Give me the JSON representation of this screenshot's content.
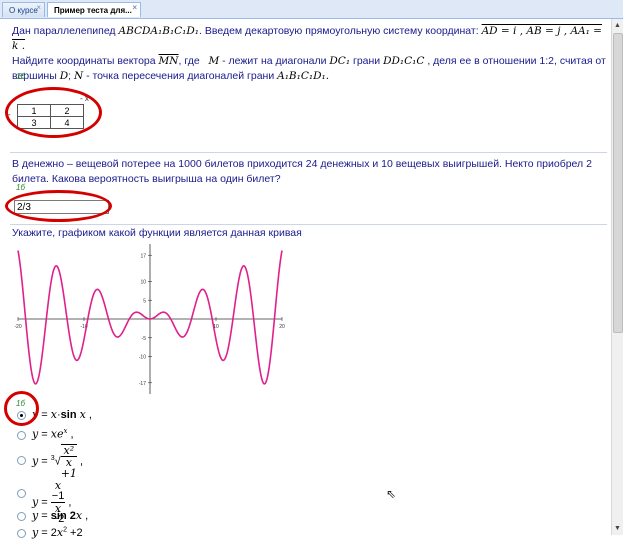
{
  "tabs": [
    {
      "label": "О курсе",
      "close": "×"
    },
    {
      "label": "Пример теста для...",
      "close": "×"
    }
  ],
  "q1": {
    "line1_pre": "Дан параллелепипед",
    "shape": "ABCDA₁B₁C₁D₁",
    "line1_mid": ". Введем декартовую прямоугольную систему координат:",
    "vectors": "AD = i , AB = j , AA₁ = k .",
    "line2_pre": "Найдите координаты вектора",
    "vec": "MN",
    "line2_mid": ", где",
    "m": "M",
    "line2_rest": "- лежит на диагонали",
    "dc": "DC₁",
    "face_word": "грани",
    "face": "DD₁C₁C",
    "line2_end": ", деля ее в отношении 1:2, считая от",
    "line3_pre": "вершины",
    "d": "D",
    "n": "N",
    "line3_rest": "- точка пересечения диагоналей грани",
    "face2": "A₁B₁C₁D₁.",
    "mark": "1б",
    "matrix_left": "-",
    "matrix_top": "- x",
    "cells": [
      "1",
      "2",
      "3",
      "4"
    ]
  },
  "q2": {
    "text": "В денежно – вещевой потерее на 1000 билетов приходится 24 денежных и 10 вещевых выигрышей. Некто приобрел 2 билета. Какова вероятность выигрыша на один билет?",
    "mark": "1б",
    "answer": "2/3"
  },
  "q3": {
    "text": "Укажите, графиком какой функции является данная кривая",
    "mark": "1б",
    "options": [
      "y = x · sin x ,",
      "y = xe^x ,",
      "y = ∛(x² / (x+1)) ,",
      "y = (x−1)/(x−2) ,",
      "y = sin 2x ,",
      "y = 2x² + 2"
    ],
    "selected_index": 0
  },
  "chart_data": {
    "type": "line",
    "title": "",
    "function": "x·sin x",
    "xlim": [
      -20,
      20
    ],
    "ylim": [
      -20,
      20
    ],
    "x_ticks": [
      "-20",
      "-10",
      "10",
      "20"
    ],
    "y_ticks": [
      "17",
      "10",
      "5",
      "-5",
      "-10",
      "-17"
    ],
    "series": [
      {
        "x": [
          -20,
          -17.5,
          -14.2,
          -11,
          -7.9,
          -4.9,
          -2,
          0,
          2,
          4.9,
          7.9,
          11,
          14.2,
          17.5,
          20
        ],
        "y": [
          18.3,
          -17,
          14,
          -11,
          7.9,
          -4.8,
          1.8,
          0,
          1.8,
          -4.8,
          7.9,
          -11,
          14,
          -17,
          18.3
        ]
      }
    ],
    "color": "#e0208c"
  }
}
